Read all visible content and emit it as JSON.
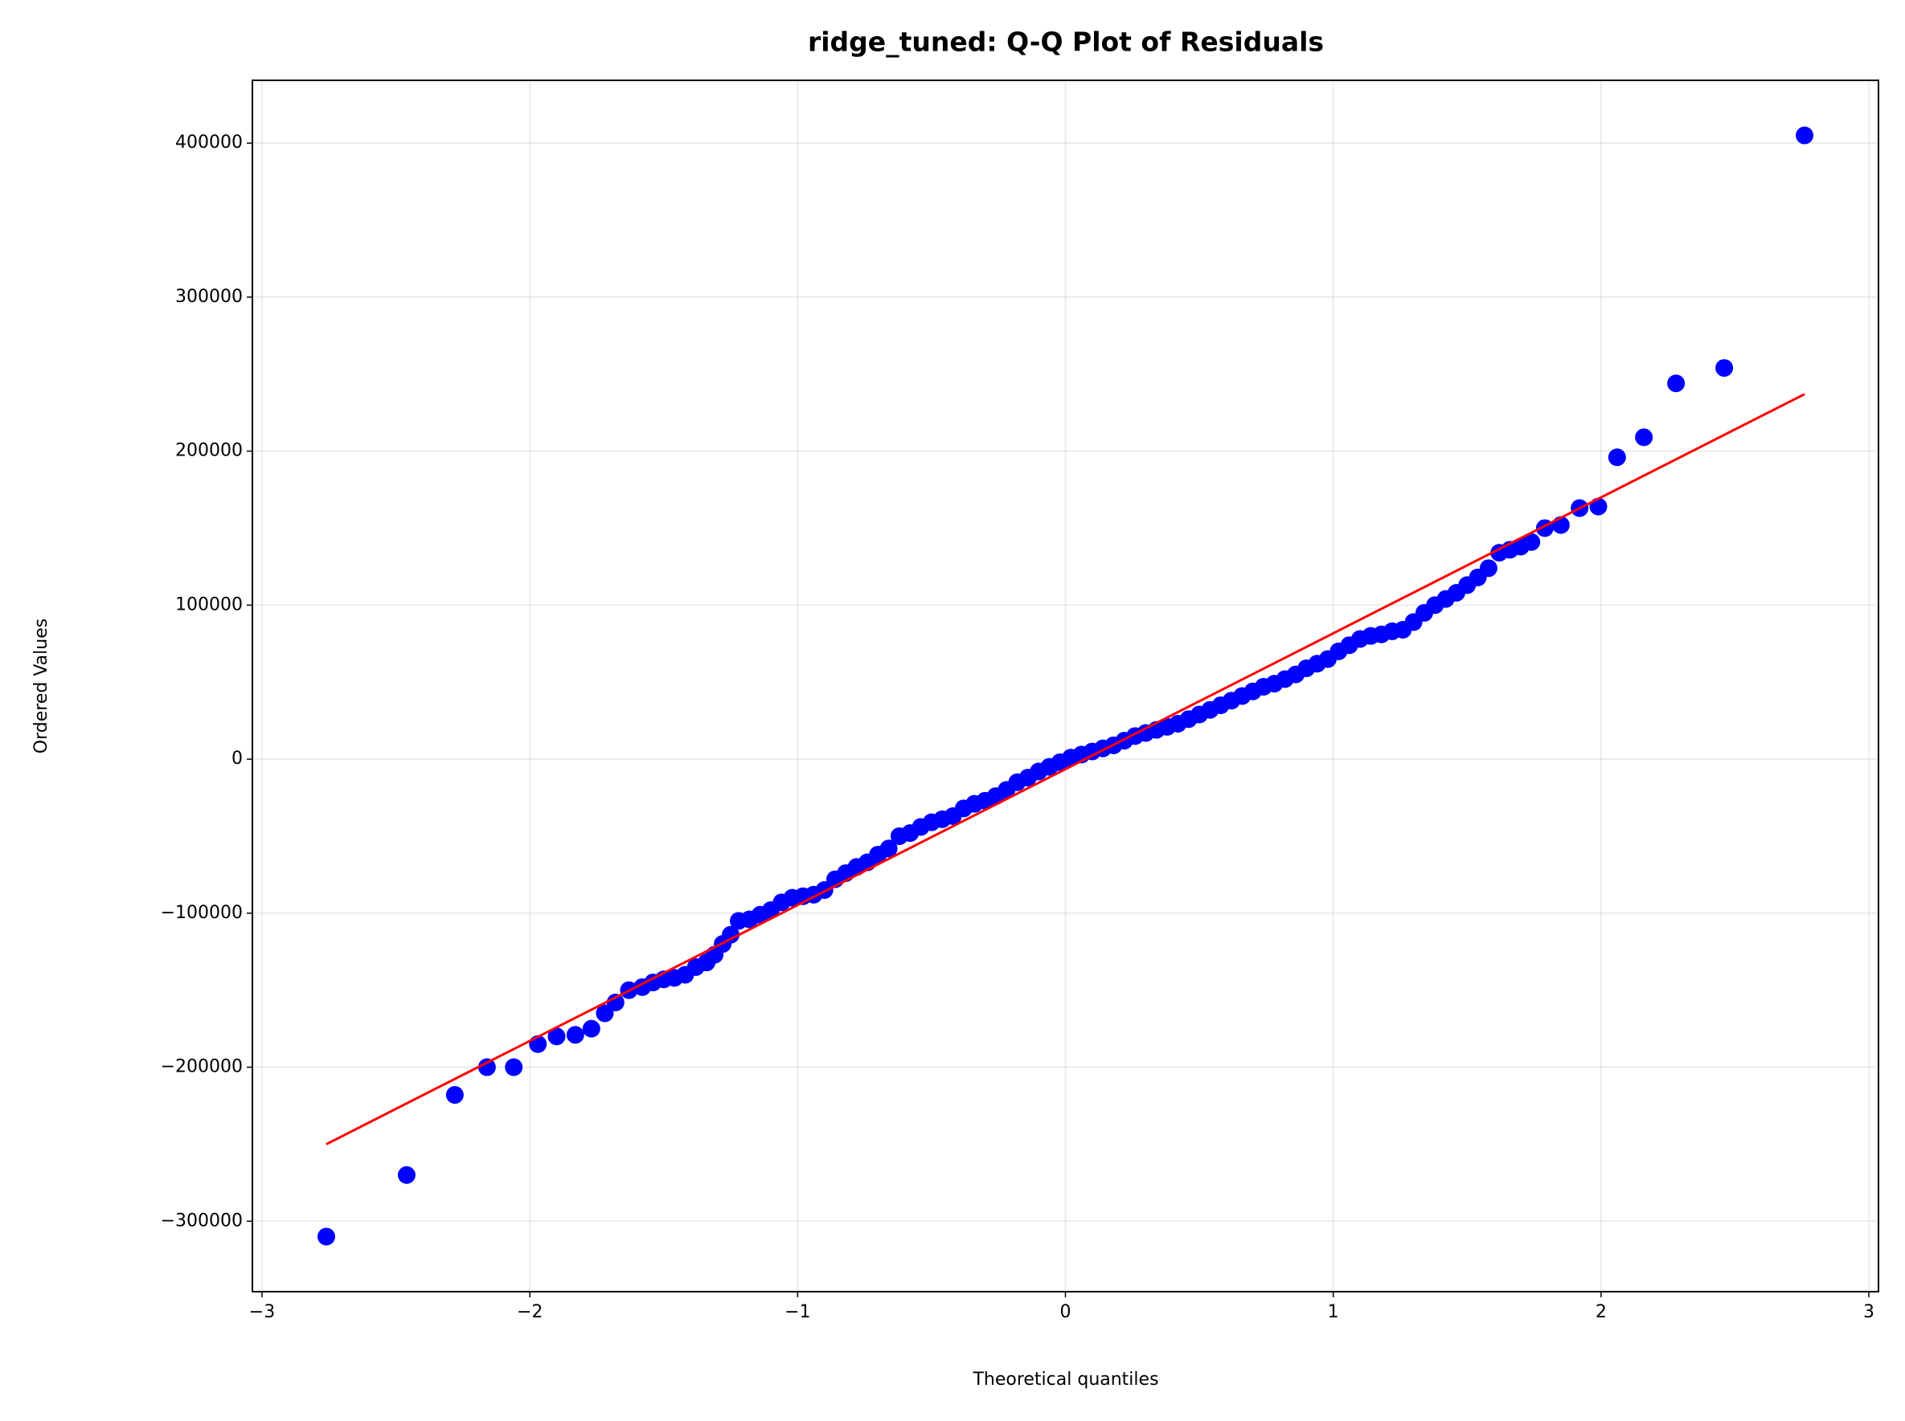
{
  "chart_data": {
    "type": "scatter",
    "title": "ridge_tuned: Q-Q Plot of Residuals",
    "xlabel": "Theoretical quantiles",
    "ylabel": "Ordered Values",
    "xlim": [
      -3.036,
      3.036
    ],
    "ylim": [
      -345750,
      440750
    ],
    "xticks": [
      {
        "value": -3,
        "label": "−3"
      },
      {
        "value": -2,
        "label": "−2"
      },
      {
        "value": -1,
        "label": "−1"
      },
      0,
      1,
      2,
      3
    ],
    "yticks": [
      {
        "value": -300000,
        "label": "−300000"
      },
      {
        "value": -200000,
        "label": "−200000"
      },
      {
        "value": -100000,
        "label": "−100000"
      },
      0,
      100000,
      200000,
      300000,
      400000
    ],
    "grid": true,
    "series": [
      {
        "color": "#0000ff",
        "x": [
          -2.76,
          -2.46,
          -2.28,
          -2.16,
          -2.06,
          -1.97,
          -1.9,
          -1.83,
          -1.77,
          -1.72,
          -1.68,
          -1.63,
          -1.58,
          -1.54,
          -1.5,
          -1.46,
          -1.42,
          -1.38,
          -1.34,
          -1.31,
          -1.28,
          -1.25,
          -1.22,
          -1.18,
          -1.14,
          -1.1,
          -1.06,
          -1.02,
          -0.98,
          -0.94,
          -0.9,
          -0.86,
          -0.82,
          -0.78,
          -0.74,
          -0.7,
          -0.66,
          -0.62,
          -0.58,
          -0.54,
          -0.5,
          -0.46,
          -0.42,
          -0.38,
          -0.34,
          -0.3,
          -0.26,
          -0.22,
          -0.18,
          -0.14,
          -0.1,
          -0.06,
          -0.02,
          0.02,
          0.06,
          0.1,
          0.14,
          0.18,
          0.22,
          0.26,
          0.3,
          0.34,
          0.38,
          0.42,
          0.46,
          0.5,
          0.54,
          0.58,
          0.62,
          0.66,
          0.7,
          0.74,
          0.78,
          0.82,
          0.86,
          0.9,
          0.94,
          0.98,
          1.02,
          1.06,
          1.1,
          1.14,
          1.18,
          1.22,
          1.26,
          1.3,
          1.34,
          1.38,
          1.42,
          1.46,
          1.5,
          1.54,
          1.58,
          1.62,
          1.66,
          1.7,
          1.74,
          1.79,
          1.85,
          1.92,
          1.99,
          2.06,
          2.16,
          2.28,
          2.46,
          2.76
        ],
        "values": [
          -310000,
          -270000,
          -218000,
          -200000,
          -200000,
          -185000,
          -180000,
          -179000,
          -175000,
          -165000,
          -158000,
          -150000,
          -148000,
          -145000,
          -143000,
          -142000,
          -140000,
          -135000,
          -132000,
          -127000,
          -120000,
          -114000,
          -105000,
          -104000,
          -101000,
          -98000,
          -93000,
          -90000,
          -89000,
          -88000,
          -85000,
          -78000,
          -74000,
          -70000,
          -67000,
          -62000,
          -58000,
          -50000,
          -48000,
          -44000,
          -41000,
          -39000,
          -37000,
          -32000,
          -29000,
          -27000,
          -24000,
          -20000,
          -15000,
          -12000,
          -8000,
          -5000,
          -2000,
          1000,
          3000,
          5000,
          7000,
          9000,
          12000,
          15000,
          17000,
          19000,
          21000,
          23000,
          26000,
          29000,
          32000,
          35000,
          38000,
          41000,
          44000,
          47000,
          49000,
          52000,
          55000,
          59000,
          62000,
          65000,
          70000,
          74000,
          78000,
          80000,
          81000,
          83000,
          84000,
          89000,
          95000,
          100000,
          104000,
          108000,
          113000,
          118000,
          124000,
          134000,
          136000,
          138000,
          141000,
          150000,
          152000,
          163000,
          164000,
          196000,
          209000,
          244000,
          254000,
          405000
        ]
      },
      {
        "color": "#ff0000",
        "style": "line",
        "x": [
          -2.76,
          2.76
        ],
        "values": [
          -250000,
          237000
        ]
      }
    ]
  }
}
